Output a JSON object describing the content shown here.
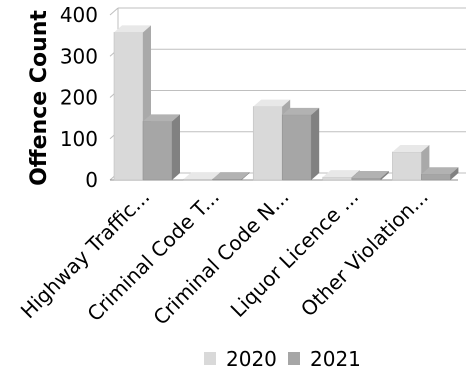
{
  "chart_data": {
    "type": "bar",
    "categories": [
      "Highway Traffic...",
      "Criminal Code T...",
      "Criminal Code N...",
      "Liquor Licence ...",
      "Other Violation..."
    ],
    "series": [
      {
        "name": "2020",
        "values": [
          358,
          2,
          178,
          7,
          68
        ]
      },
      {
        "name": "2021",
        "values": [
          142,
          2,
          158,
          5,
          14
        ]
      }
    ],
    "ylabel": "Offence Count",
    "ylim": [
      0,
      400
    ],
    "yticks": [
      0,
      100,
      200,
      300,
      400
    ],
    "grid": true,
    "legend": "bottom",
    "colors": {
      "2020": "#d9d9d9",
      "2021": "#a6a6a6"
    }
  }
}
